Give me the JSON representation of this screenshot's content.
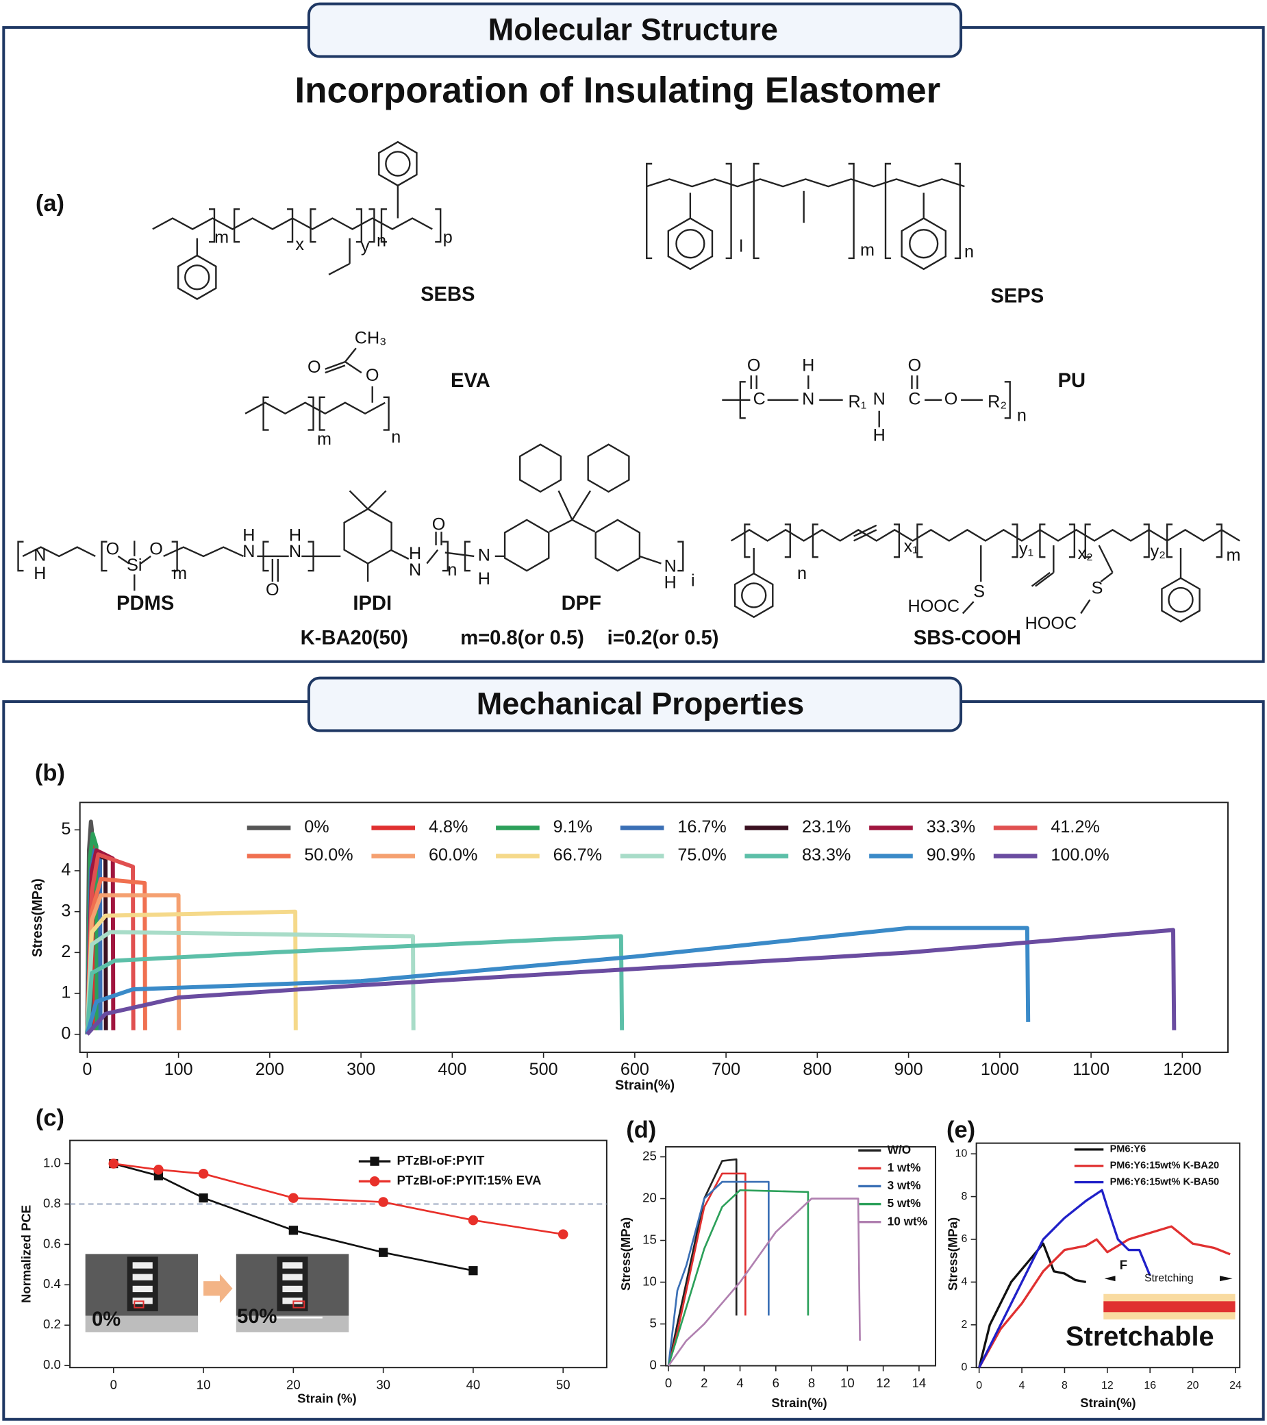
{
  "sections": [
    {
      "title": "Molecular Structure",
      "subtitle": "Incorporation of Insulating Elastomer",
      "panel": "(a)"
    },
    {
      "title": "Mechanical Properties"
    }
  ],
  "structures": [
    {
      "name": "SEBS",
      "labels": [
        "m",
        "x",
        "y",
        "n",
        "p"
      ]
    },
    {
      "name": "SEPS",
      "labels": [
        "l",
        "m",
        "n"
      ]
    },
    {
      "name": "EVA",
      "labels": [
        "CH₃",
        "O",
        "O",
        "m",
        "n"
      ]
    },
    {
      "name": "PU",
      "labels": [
        "O",
        "H",
        "O",
        "C",
        "N",
        "R₁",
        "N",
        "C",
        "O",
        "R₂",
        "n",
        "H"
      ]
    },
    {
      "name": "K-BA20(50)",
      "parts": [
        "PDMS",
        "IPDI",
        "DPF"
      ],
      "composition": [
        "m=0.8(or 0.5)",
        "i=0.2(or 0.5)"
      ],
      "labels": [
        "N",
        "H",
        "O",
        "Si",
        "O",
        "m",
        "H",
        "N",
        "H",
        "N",
        "O",
        "H",
        "N",
        "O",
        "n",
        "N",
        "H",
        "N",
        "H",
        "i"
      ]
    },
    {
      "name": "SBS-COOH",
      "labels": [
        "n",
        "x₁",
        "y₁",
        "x₂",
        "y₂",
        "m",
        "S",
        "HOOC",
        "S",
        "HOOC"
      ]
    }
  ],
  "chart_data": [
    {
      "type": "line",
      "panel": "(b)",
      "xlabel": "Strain(%)",
      "ylabel": "Stress(MPa)",
      "xlim": [
        -8,
        1250
      ],
      "ylim": [
        -0.44,
        5.67
      ],
      "xticks": [
        0,
        100,
        200,
        300,
        400,
        500,
        600,
        700,
        800,
        900,
        1000,
        1100,
        1200
      ],
      "yticks": [
        0,
        1,
        2,
        3,
        4,
        5
      ],
      "series": [
        {
          "name": "0%",
          "color": "#555555",
          "x": [
            0,
            2,
            4,
            5,
            5.5
          ],
          "values": [
            0,
            4.5,
            5.2,
            5.0,
            0.1
          ]
        },
        {
          "name": "4.8%",
          "color": "#e03030",
          "x": [
            0,
            3,
            6,
            8,
            8.5
          ],
          "values": [
            0,
            4.2,
            4.6,
            4.4,
            0.1
          ]
        },
        {
          "name": "9.1%",
          "color": "#2ca05a",
          "x": [
            0,
            3,
            6,
            10,
            10.5
          ],
          "values": [
            0,
            4.3,
            4.9,
            4.6,
            0.1
          ]
        },
        {
          "name": "16.7%",
          "color": "#3a6fb5",
          "x": [
            0,
            4,
            8,
            14,
            14.5
          ],
          "values": [
            0,
            4.0,
            4.5,
            4.4,
            0.1
          ]
        },
        {
          "name": "23.1%",
          "color": "#3a1020",
          "x": [
            0,
            5,
            10,
            20,
            20.5
          ],
          "values": [
            0,
            3.8,
            4.4,
            4.3,
            0.1
          ]
        },
        {
          "name": "33.3%",
          "color": "#a0153e",
          "x": [
            0,
            5,
            10,
            28,
            28.5
          ],
          "values": [
            0,
            4.0,
            4.5,
            4.3,
            0.1
          ]
        },
        {
          "name": "41.2%",
          "color": "#e05050",
          "x": [
            0,
            5,
            12,
            50,
            50.5
          ],
          "values": [
            0,
            3.5,
            4.4,
            4.1,
            0.1
          ]
        },
        {
          "name": "50.0%",
          "color": "#f07050",
          "x": [
            0,
            5,
            15,
            63,
            63.5
          ],
          "values": [
            0,
            3.0,
            3.8,
            3.7,
            0.1
          ]
        },
        {
          "name": "60.0%",
          "color": "#f5a070",
          "x": [
            0,
            5,
            15,
            100,
            100.5
          ],
          "values": [
            0,
            2.8,
            3.4,
            3.4,
            0.1
          ]
        },
        {
          "name": "66.7%",
          "color": "#f5d98a",
          "x": [
            0,
            5,
            20,
            228,
            228.5
          ],
          "values": [
            0,
            2.5,
            2.9,
            3.0,
            0.1
          ]
        },
        {
          "name": "75.0%",
          "color": "#a8dcc8",
          "x": [
            0,
            5,
            25,
            357,
            357.5
          ],
          "values": [
            0,
            2.2,
            2.5,
            2.4,
            0.1
          ]
        },
        {
          "name": "83.3%",
          "color": "#5cbfa8",
          "x": [
            0,
            5,
            30,
            200,
            585,
            586
          ],
          "values": [
            0,
            1.5,
            1.8,
            2.0,
            2.4,
            0.1
          ]
        },
        {
          "name": "90.9%",
          "color": "#3a8ac8",
          "x": [
            0,
            10,
            50,
            300,
            600,
            900,
            1030,
            1031
          ],
          "values": [
            0,
            0.8,
            1.1,
            1.3,
            1.9,
            2.6,
            2.6,
            0.3
          ]
        },
        {
          "name": "100.0%",
          "color": "#6a4ca0",
          "x": [
            0,
            20,
            100,
            300,
            600,
            900,
            1190,
            1191
          ],
          "values": [
            0,
            0.5,
            0.9,
            1.2,
            1.6,
            2.0,
            2.55,
            0.1
          ]
        }
      ]
    },
    {
      "type": "line",
      "panel": "(c)",
      "xlabel": "Strain (%)",
      "ylabel": "Normalized PCE",
      "xlim": [
        -4.85,
        54.85
      ],
      "ylim": [
        -0.01,
        1.115
      ],
      "xticks": [
        0,
        10,
        20,
        30,
        40,
        50
      ],
      "yticks": [
        {
          "value": 0,
          "label": "0.0"
        },
        0.2,
        0.4,
        0.6,
        0.8,
        {
          "value": 1,
          "label": "1.0"
        }
      ],
      "ref_line": 0.8,
      "annotations": [
        "0%",
        "50%"
      ],
      "series": [
        {
          "name": "PTzBI-oF:PYIT",
          "color": "#111111",
          "marker": "square",
          "x": [
            0,
            5,
            10,
            20,
            30,
            40
          ],
          "values": [
            1.0,
            0.94,
            0.83,
            0.67,
            0.56,
            0.47
          ]
        },
        {
          "name": "PTzBI-oF:PYIT:15% EVA",
          "color": "#e8302a",
          "marker": "circle",
          "x": [
            0,
            5,
            10,
            20,
            30,
            40,
            50
          ],
          "values": [
            1.0,
            0.97,
            0.95,
            0.83,
            0.81,
            0.72,
            0.65
          ]
        }
      ]
    },
    {
      "type": "line",
      "panel": "(d)",
      "xlabel": "Strain(%)",
      "ylabel": "Stress(MPa)",
      "xlim": [
        -0.15,
        14.92
      ],
      "ylim": [
        0,
        26.2
      ],
      "xticks": [
        0,
        2,
        4,
        6,
        8,
        10,
        12,
        14
      ],
      "yticks": [
        0,
        5,
        10,
        15,
        20,
        25
      ],
      "series": [
        {
          "name": "W/O",
          "color": "#222222",
          "x": [
            0,
            0.5,
            1,
            2,
            3,
            3.8,
            3.8
          ],
          "values": [
            0,
            5,
            10,
            20,
            24.5,
            24.7,
            6
          ]
        },
        {
          "name": "1 wt%",
          "color": "#e03030",
          "x": [
            0,
            0.5,
            1,
            2,
            3,
            4.3,
            4.3
          ],
          "values": [
            0,
            4,
            9,
            19,
            23,
            23,
            6
          ]
        },
        {
          "name": "3 wt%",
          "color": "#3a6fb5",
          "x": [
            0,
            0.5,
            1,
            2,
            3,
            5.6,
            5.6
          ],
          "values": [
            0,
            9,
            12,
            20,
            22,
            22,
            6
          ]
        },
        {
          "name": "5 wt%",
          "color": "#2ca05a",
          "x": [
            0,
            1,
            2,
            3,
            4,
            7.8,
            7.8
          ],
          "values": [
            0,
            7,
            14,
            19,
            21,
            20.8,
            6
          ]
        },
        {
          "name": "10 wt%",
          "color": "#b080b0",
          "x": [
            0,
            1,
            2,
            4,
            6,
            8,
            10.6,
            10.7
          ],
          "values": [
            0,
            3,
            5,
            10,
            16,
            20,
            20,
            3
          ]
        }
      ]
    },
    {
      "type": "line",
      "panel": "(e)",
      "xlabel": "Strain(%)",
      "ylabel": "Stress(MPa)",
      "xlim": [
        -0.26,
        24.4
      ],
      "ylim": [
        0,
        10.5
      ],
      "xticks": [
        0,
        4,
        8,
        12,
        16,
        20,
        24
      ],
      "yticks": [
        0,
        2,
        4,
        6,
        8,
        10
      ],
      "annotations": [
        "F",
        "Stretching",
        "Stretchable"
      ],
      "series": [
        {
          "name": "PM6:Y6",
          "color": "#111111",
          "x": [
            0,
            1,
            3,
            5,
            6,
            7,
            8,
            9,
            10
          ],
          "values": [
            0,
            2,
            4,
            5.2,
            5.8,
            4.5,
            4.4,
            4.1,
            4.0
          ]
        },
        {
          "name": "PM6:Y6:15wt% K-BA20",
          "color": "#e03030",
          "x": [
            0,
            2,
            4,
            6,
            8,
            10,
            11,
            12,
            14,
            18,
            20,
            22,
            23.5
          ],
          "values": [
            0,
            1.8,
            3,
            4.5,
            5.5,
            5.7,
            6.0,
            5.4,
            6,
            6.6,
            5.8,
            5.6,
            5.3
          ]
        },
        {
          "name": "PM6:Y6:15wt% K-BA50",
          "color": "#2020c8",
          "x": [
            0,
            2,
            4,
            6,
            8,
            10,
            11.5,
            12,
            13,
            14,
            15,
            16
          ],
          "values": [
            0,
            2,
            4,
            6,
            7,
            7.8,
            8.3,
            7.5,
            6,
            5.5,
            5.5,
            4.3
          ]
        }
      ]
    }
  ]
}
